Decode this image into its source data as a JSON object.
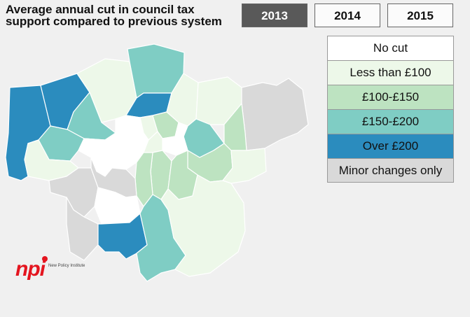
{
  "title": "Average annual cut in council tax support compared to previous system",
  "year_tabs": [
    {
      "label": "2013",
      "active": true
    },
    {
      "label": "2014",
      "active": false
    },
    {
      "label": "2015",
      "active": false
    }
  ],
  "legend": [
    {
      "label": "No cut",
      "color": "#ffffff"
    },
    {
      "label": "Less than £100",
      "color": "#edf8e9"
    },
    {
      "label": "£100-£150",
      "color": "#bde3c1"
    },
    {
      "label": "£150-£200",
      "color": "#7fcdc4"
    },
    {
      "label": "Over £200",
      "color": "#2b8cbe"
    },
    {
      "label": "Minor changes only",
      "color": "#d9d9d9"
    }
  ],
  "logo": {
    "mark": "npi",
    "name": "New Policy Institute"
  }
}
